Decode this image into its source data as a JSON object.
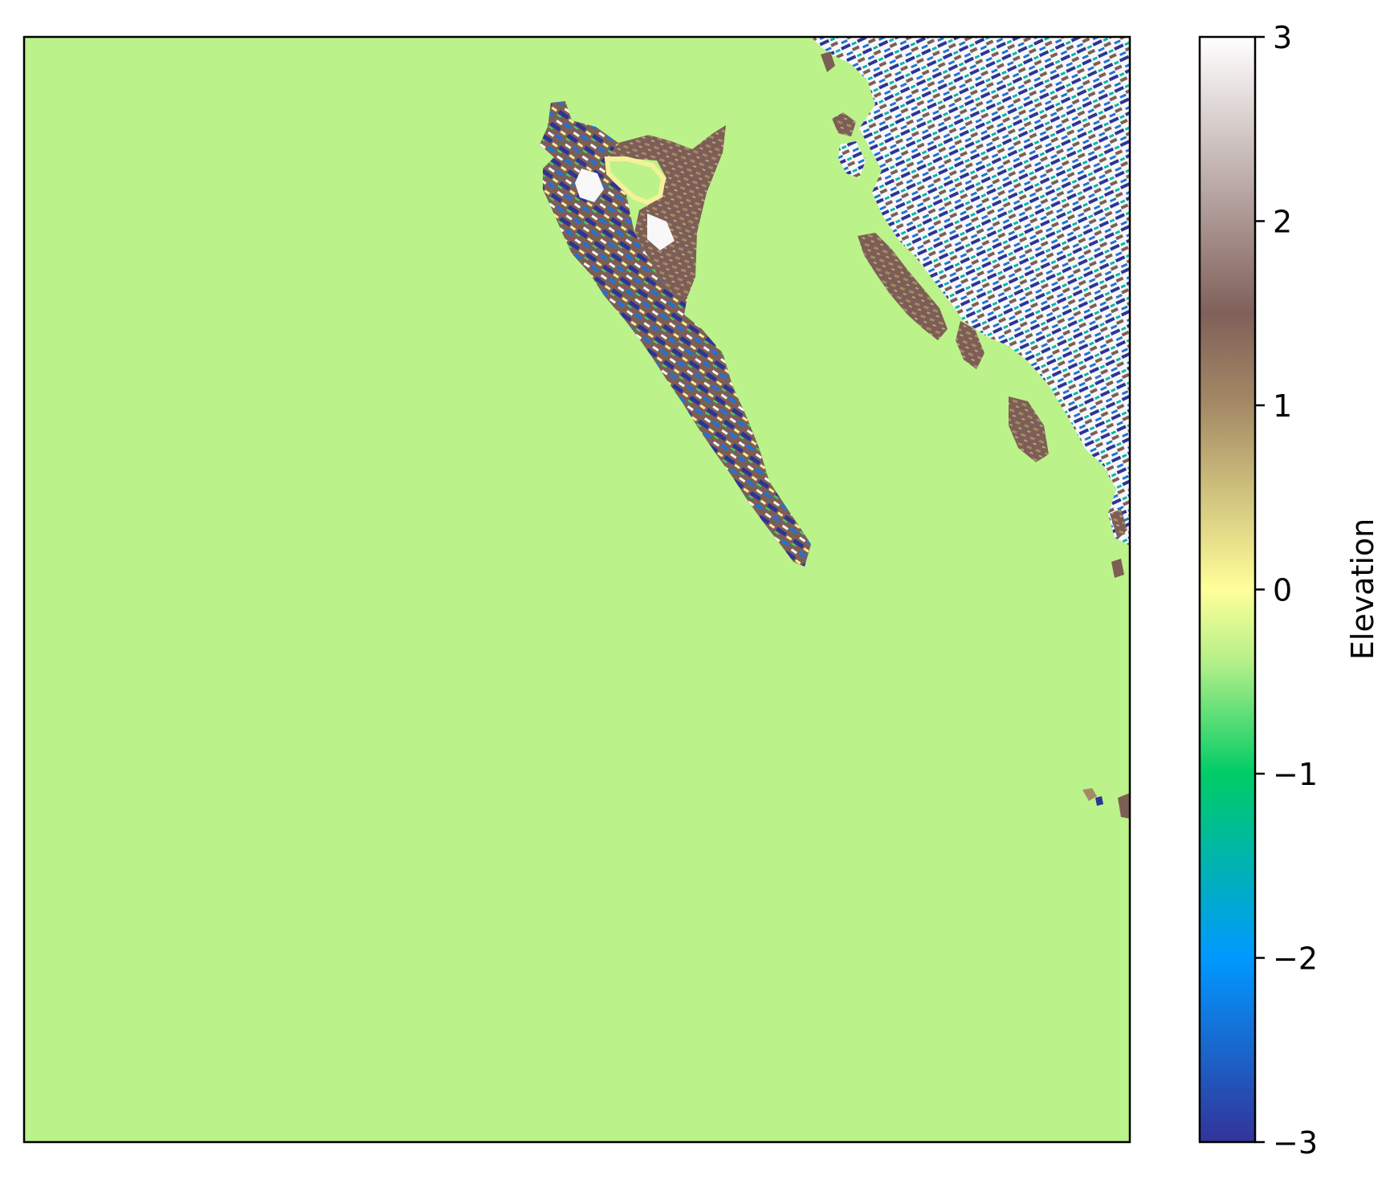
{
  "map": {
    "ocean_color": "#bbf28a",
    "land_palette": {
      "deep_low": "#2c3595",
      "low": "#1f73d6",
      "mid_low": "#00b7a8",
      "green": "#39d86a",
      "yellow": "#f5f09a",
      "tan": "#a48a65",
      "brown": "#7d5e55",
      "light_brown": "#b8a191",
      "white": "#f8f8f8"
    }
  },
  "colorbar": {
    "label": "Elevation",
    "ticks": [
      {
        "value": 3,
        "label": "3"
      },
      {
        "value": 2,
        "label": "2"
      },
      {
        "value": 1,
        "label": "1"
      },
      {
        "value": 0,
        "label": "0"
      },
      {
        "value": -1,
        "label": "−1"
      },
      {
        "value": -2,
        "label": "−2"
      },
      {
        "value": -3,
        "label": "−3"
      }
    ],
    "range": [
      -3,
      3
    ],
    "stops": [
      {
        "value": -3,
        "color": "#333399"
      },
      {
        "value": -2,
        "color": "#0099ff"
      },
      {
        "value": -1,
        "color": "#00cc66"
      },
      {
        "value": -0.4,
        "color": "#b3ef88"
      },
      {
        "value": 0,
        "color": "#ffff99"
      },
      {
        "value": 1,
        "color": "#a48a65"
      },
      {
        "value": 1.5,
        "color": "#80605a"
      },
      {
        "value": 3,
        "color": "#ffffff"
      }
    ]
  }
}
